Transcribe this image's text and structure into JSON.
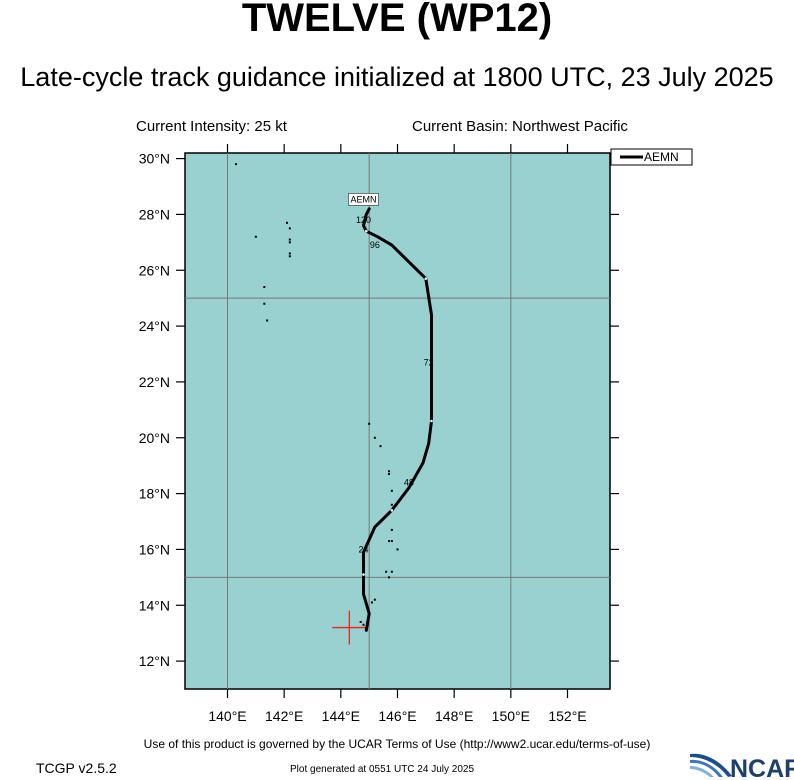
{
  "header": {
    "title": "TWELVE (WP12)",
    "subtitle": "Late-cycle track guidance initialized at 1800 UTC, 23 July 2025",
    "intensity": "Current Intensity: 25 kt",
    "basin": "Current Basin: Northwest Pacific"
  },
  "map": {
    "lon_range": [
      138.5,
      153.5
    ],
    "lat_range": [
      11,
      30.2
    ],
    "lat_ticks": [
      {
        "value": 12,
        "label": "12°N"
      },
      {
        "value": 14,
        "label": "14°N"
      },
      {
        "value": 16,
        "label": "16°N"
      },
      {
        "value": 18,
        "label": "18°N"
      },
      {
        "value": 20,
        "label": "20°N"
      },
      {
        "value": 22,
        "label": "22°N"
      },
      {
        "value": 24,
        "label": "24°N"
      },
      {
        "value": 26,
        "label": "26°N"
      },
      {
        "value": 28,
        "label": "28°N"
      },
      {
        "value": 30,
        "label": "30°N"
      }
    ],
    "lon_ticks": [
      {
        "value": 140,
        "label": "140°E"
      },
      {
        "value": 142,
        "label": "142°E"
      },
      {
        "value": 144,
        "label": "144°E"
      },
      {
        "value": 146,
        "label": "146°E"
      },
      {
        "value": 148,
        "label": "148°E"
      },
      {
        "value": 150,
        "label": "150°E"
      },
      {
        "value": 152,
        "label": "152°E"
      }
    ],
    "grid_lons": [
      140,
      145,
      150
    ],
    "grid_lats": [
      15,
      25
    ],
    "ocean_color": "#99d0d0",
    "grid_color": "#777777",
    "current_position": {
      "lon": 144.3,
      "lat": 13.2,
      "color": "#ee2222"
    },
    "legend": {
      "label": "AEMN",
      "placement": "top-right"
    },
    "track": {
      "model": "AEMN",
      "color": "#000000",
      "points": [
        [
          144.9,
          13.1
        ],
        [
          145.0,
          13.7
        ],
        [
          144.8,
          14.4
        ],
        [
          144.8,
          15.1
        ],
        [
          144.8,
          15.9
        ],
        [
          145.2,
          16.8
        ],
        [
          145.8,
          17.4
        ],
        [
          146.4,
          18.2
        ],
        [
          146.9,
          19.1
        ],
        [
          147.1,
          19.8
        ],
        [
          147.2,
          20.6
        ],
        [
          147.2,
          22.1
        ],
        [
          147.2,
          23.1
        ],
        [
          147.2,
          24.4
        ],
        [
          147.0,
          25.7
        ],
        [
          146.3,
          26.4
        ],
        [
          145.8,
          26.9
        ],
        [
          145.3,
          27.2
        ],
        [
          144.9,
          27.4
        ],
        [
          144.8,
          27.6
        ],
        [
          144.9,
          28.0
        ],
        [
          145.0,
          28.2
        ]
      ],
      "tau_labels": [
        {
          "text": "24",
          "lon": 144.8,
          "lat": 16.0
        },
        {
          "text": "48",
          "lon": 146.4,
          "lat": 18.4
        },
        {
          "text": "72",
          "lon": 147.1,
          "lat": 22.7
        },
        {
          "text": "96",
          "lon": 145.2,
          "lat": 26.9
        },
        {
          "text": "120",
          "lon": 144.8,
          "lat": 27.8
        }
      ],
      "end_label": {
        "text": "AEMN",
        "lon": 144.8,
        "lat": 28.5
      }
    },
    "islands": [
      [
        140.3,
        29.8
      ],
      [
        142.1,
        27.7
      ],
      [
        142.2,
        27.5
      ],
      [
        142.2,
        27.1
      ],
      [
        142.2,
        27.0
      ],
      [
        142.2,
        26.6
      ],
      [
        142.2,
        26.5
      ],
      [
        141.0,
        27.2
      ],
      [
        141.3,
        25.4
      ],
      [
        141.3,
        24.8
      ],
      [
        141.4,
        24.2
      ],
      [
        145.0,
        20.5
      ],
      [
        145.2,
        20.0
      ],
      [
        145.4,
        19.7
      ],
      [
        145.7,
        18.8
      ],
      [
        145.7,
        18.7
      ],
      [
        145.8,
        18.1
      ],
      [
        145.8,
        17.6
      ],
      [
        145.8,
        16.7
      ],
      [
        145.7,
        16.3
      ],
      [
        145.8,
        16.3
      ],
      [
        146.0,
        16.0
      ],
      [
        145.6,
        15.2
      ],
      [
        145.8,
        15.2
      ],
      [
        145.7,
        15.0
      ],
      [
        145.2,
        14.2
      ],
      [
        145.1,
        14.1
      ],
      [
        144.7,
        13.4
      ],
      [
        144.8,
        13.3
      ]
    ]
  },
  "footer": {
    "terms": "Use of this product is governed by the UCAR Terms of Use (http://www2.ucar.edu/terms-of-use)",
    "version": "TCGP v2.5.2",
    "generated": "Plot generated at 0551 UTC   24 July 2025",
    "logo_text": "NCAR"
  }
}
